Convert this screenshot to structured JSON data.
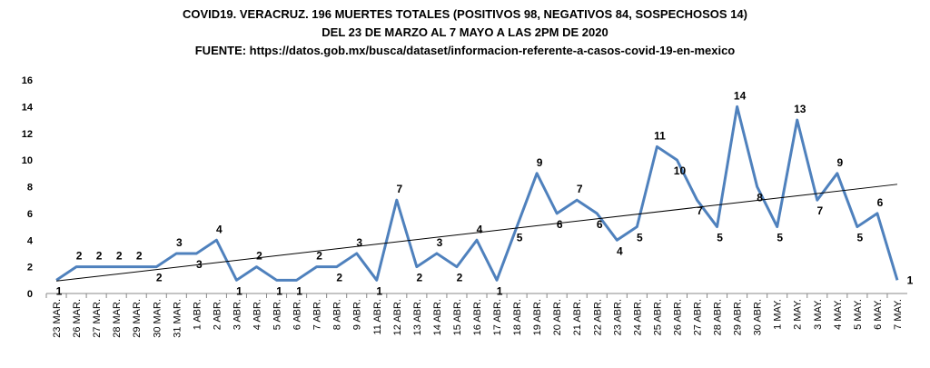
{
  "chart_data": {
    "type": "line",
    "title": [
      "COVID19. VERACRUZ. 196 MUERTES TOTALES (POSITIVOS 98, NEGATIVOS 84, SOSPECHOSOS 14)",
      "DEL 23 DE MARZO AL 7 MAYO A LAS 2PM DE 2020",
      "FUENTE: https://datos.gob.mx/busca/dataset/informacion-referente-a-casos-covid-19-en-mexico"
    ],
    "categories": [
      "23 MAR.",
      "26 MAR.",
      "27 MAR.",
      "28 MAR.",
      "29 MAR.",
      "30 MAR.",
      "31 MAR.",
      "1 ABR.",
      "2 ABR.",
      "3 ABR.",
      "4 ABR.",
      "5 ABR.",
      "6 ABR.",
      "7 ABR.",
      "8 ABR.",
      "9 ABR.",
      "11 ABR.",
      "12 ABR.",
      "13 ABR.",
      "14 ABR.",
      "15 ABR.",
      "16 ABR.",
      "17 ABR.",
      "18 ABR.",
      "19 ABR.",
      "20 ABR.",
      "21 ABR.",
      "22 ABR.",
      "23 ABR.",
      "24 ABR.",
      "25 ABR.",
      "26 ABR.",
      "27 ABR.",
      "28 ABR.",
      "29 ABR.",
      "30 ABR.",
      "1 MAY.",
      "2 MAY.",
      "3 MAY.",
      "4 MAY.",
      "5 MAY.",
      "6 MAY.",
      "7 MAY."
    ],
    "series": [
      {
        "color": "#4f81bd",
        "values": [
          1,
          2,
          2,
          2,
          2,
          2,
          3,
          3,
          4,
          1,
          2,
          1,
          1,
          2,
          2,
          3,
          1,
          7,
          2,
          3,
          2,
          4,
          1,
          5,
          9,
          6,
          7,
          6,
          4,
          5,
          11,
          10,
          7,
          5,
          14,
          8,
          5,
          13,
          7,
          9,
          5,
          6,
          1
        ]
      }
    ],
    "trendline": "linear",
    "ylim": [
      0,
      16
    ],
    "yticks": [
      0,
      2,
      4,
      6,
      8,
      10,
      12,
      14,
      16
    ],
    "grid": false
  }
}
